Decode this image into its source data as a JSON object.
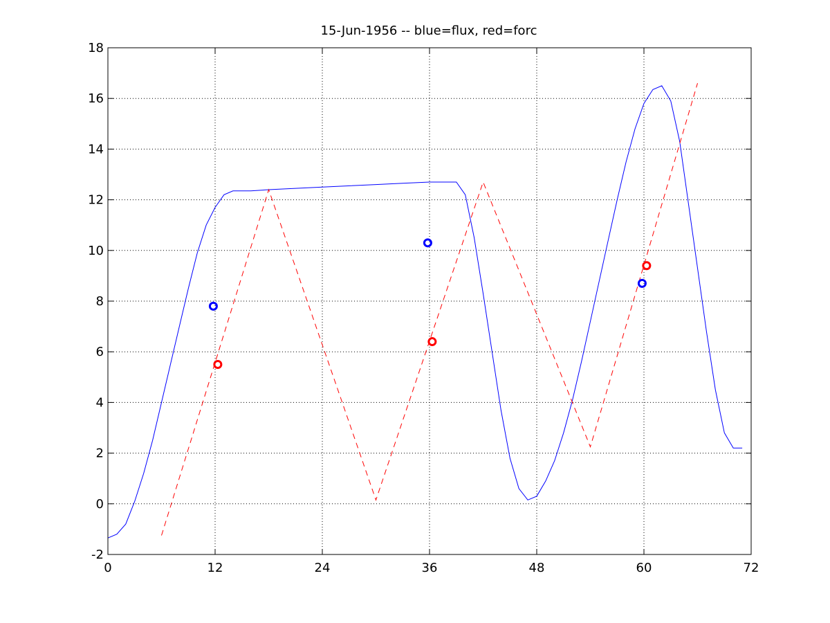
{
  "chart_data": {
    "type": "line",
    "title": "15-Jun-1956 -- blue=flux, red=forc",
    "xlabel": "",
    "ylabel": "",
    "xlim": [
      0,
      72
    ],
    "ylim": [
      -2,
      18
    ],
    "xticks": [
      0,
      12,
      24,
      36,
      48,
      60,
      72
    ],
    "yticks": [
      -2,
      0,
      2,
      4,
      6,
      8,
      10,
      12,
      14,
      16,
      18
    ],
    "grid": true,
    "colors": {
      "flux": "#0000ff",
      "forc": "#ff0000",
      "axes": "#000000",
      "grid": "#000000"
    },
    "series": [
      {
        "style": "solid",
        "color": "#0000ff",
        "x": [
          0,
          1,
          2,
          3,
          4,
          5,
          6,
          7,
          8,
          9,
          10,
          11,
          12,
          13,
          14,
          15,
          16,
          18,
          24,
          30,
          33,
          36,
          39,
          40,
          41,
          42,
          43,
          44,
          45,
          46,
          47,
          48,
          49,
          50,
          51,
          52,
          53,
          54,
          55,
          56,
          57,
          58,
          59,
          60,
          61,
          62,
          63,
          64,
          65,
          66,
          67,
          68,
          69,
          70,
          71
        ],
        "y": [
          -1.35,
          -1.2,
          -0.8,
          0.1,
          1.2,
          2.5,
          4.0,
          5.5,
          7.0,
          8.5,
          9.9,
          11.0,
          11.7,
          12.2,
          12.35,
          12.35,
          12.35,
          12.4,
          12.5,
          12.6,
          12.65,
          12.7,
          12.7,
          12.2,
          10.5,
          8.3,
          6.0,
          3.7,
          1.8,
          0.6,
          0.15,
          0.3,
          0.9,
          1.7,
          2.8,
          4.1,
          5.6,
          7.2,
          8.8,
          10.4,
          12.0,
          13.5,
          14.8,
          15.8,
          16.35,
          16.5,
          15.9,
          14.3,
          11.8,
          9.3,
          6.8,
          4.5,
          2.8,
          2.2,
          2.2
        ]
      },
      {
        "style": "dashed",
        "color": "#ff0000",
        "x": [
          6,
          18,
          30,
          42,
          54,
          66
        ],
        "y": [
          -1.25,
          12.4,
          0.15,
          12.7,
          2.25,
          16.6
        ]
      }
    ],
    "markers": [
      {
        "x": 11.8,
        "y": 7.8,
        "color": "#0000ff"
      },
      {
        "x": 12.3,
        "y": 5.5,
        "color": "#ff0000"
      },
      {
        "x": 35.8,
        "y": 10.3,
        "color": "#0000ff"
      },
      {
        "x": 36.3,
        "y": 6.4,
        "color": "#ff0000"
      },
      {
        "x": 59.8,
        "y": 8.7,
        "color": "#0000ff"
      },
      {
        "x": 60.3,
        "y": 9.4,
        "color": "#ff0000"
      }
    ]
  }
}
